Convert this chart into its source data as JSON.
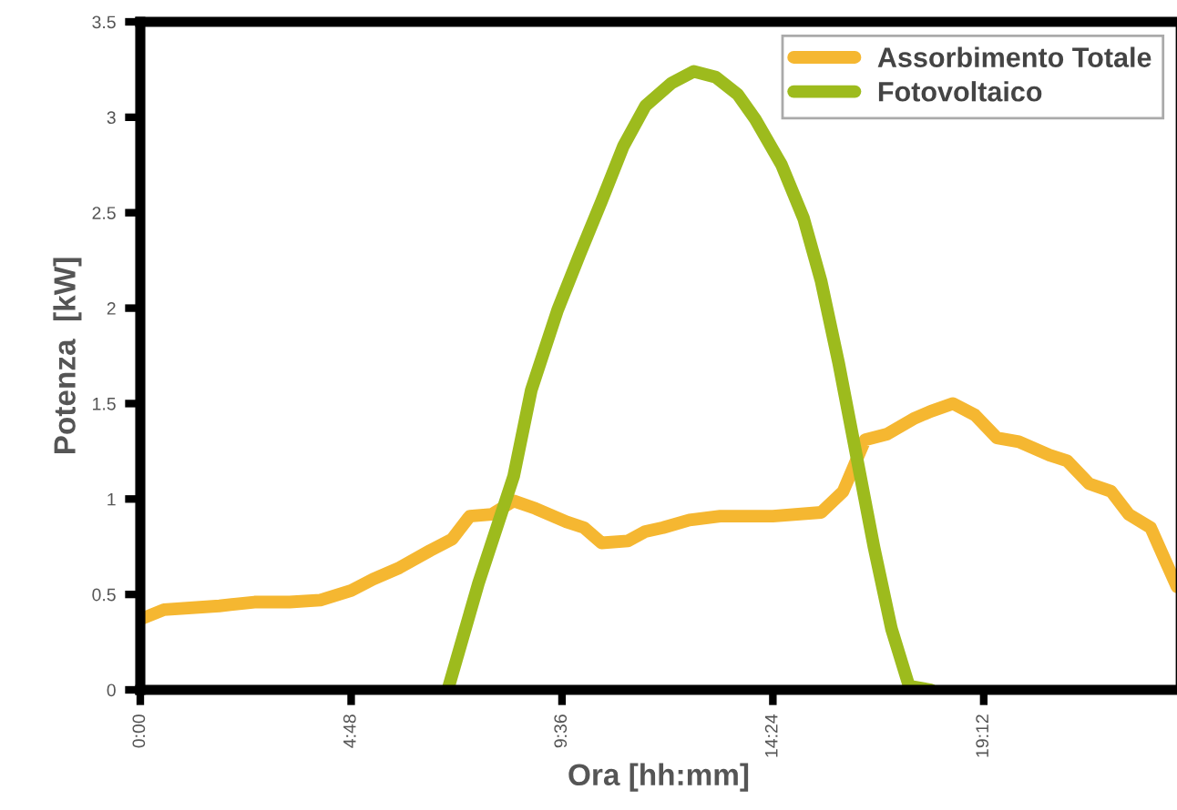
{
  "chart_data": {
    "type": "line",
    "xlabel": "Ora [hh:mm]",
    "ylabel": "Potenza  [kW]",
    "xlim": [
      0,
      23.6
    ],
    "xticks": [
      {
        "value": 0,
        "label": "0:00"
      },
      {
        "value": 4.8,
        "label": "4:48"
      },
      {
        "value": 9.6,
        "label": "9:36"
      },
      {
        "value": 14.4,
        "label": "14:24"
      },
      {
        "value": 19.2,
        "label": "19:12"
      }
    ],
    "ylim": [
      0,
      3.5
    ],
    "yticks": [
      0,
      0.5,
      1,
      1.5,
      2,
      2.5,
      3,
      3.5
    ],
    "grid": false,
    "legend": "top right",
    "marker": "none",
    "line_style": "solid",
    "series": [
      {
        "name": "Assorbimento Totale",
        "color": "#f5b731",
        "x": [
          0,
          0.54,
          1.8,
          2.6,
          3.4,
          4.1,
          4.8,
          5.3,
          5.9,
          6.6,
          7.1,
          7.5,
          8.0,
          8.5,
          9.0,
          9.7,
          10.1,
          10.5,
          11.1,
          11.5,
          11.9,
          12.5,
          13.2,
          14.4,
          15.5,
          16.0,
          16.5,
          17.0,
          17.6,
          18.0,
          18.5,
          19.0,
          19.5,
          20.0,
          20.7,
          21.1,
          21.6,
          22.1,
          22.5,
          23.0,
          23.6
        ],
        "values": [
          0.37,
          0.42,
          0.44,
          0.46,
          0.46,
          0.47,
          0.52,
          0.58,
          0.64,
          0.73,
          0.79,
          0.91,
          0.92,
          0.99,
          0.95,
          0.88,
          0.85,
          0.77,
          0.78,
          0.83,
          0.85,
          0.89,
          0.91,
          0.91,
          0.93,
          1.04,
          1.31,
          1.34,
          1.42,
          1.46,
          1.5,
          1.44,
          1.32,
          1.3,
          1.23,
          1.2,
          1.08,
          1.04,
          0.92,
          0.85,
          0.54
        ]
      },
      {
        "name": "Fotovoltaico",
        "color": "#9dbb1d",
        "x": [
          7.0,
          7.7,
          8.5,
          8.9,
          9.5,
          10.0,
          10.5,
          11.0,
          11.5,
          12.1,
          12.6,
          13.1,
          13.6,
          14.0,
          14.6,
          15.1,
          15.5,
          15.9,
          16.3,
          16.7,
          17.1,
          17.5,
          18.0
        ],
        "values": [
          0,
          0.56,
          1.12,
          1.57,
          1.99,
          2.28,
          2.56,
          2.85,
          3.06,
          3.18,
          3.24,
          3.21,
          3.12,
          2.99,
          2.75,
          2.47,
          2.14,
          1.71,
          1.23,
          0.75,
          0.32,
          0.02,
          0
        ]
      }
    ]
  }
}
